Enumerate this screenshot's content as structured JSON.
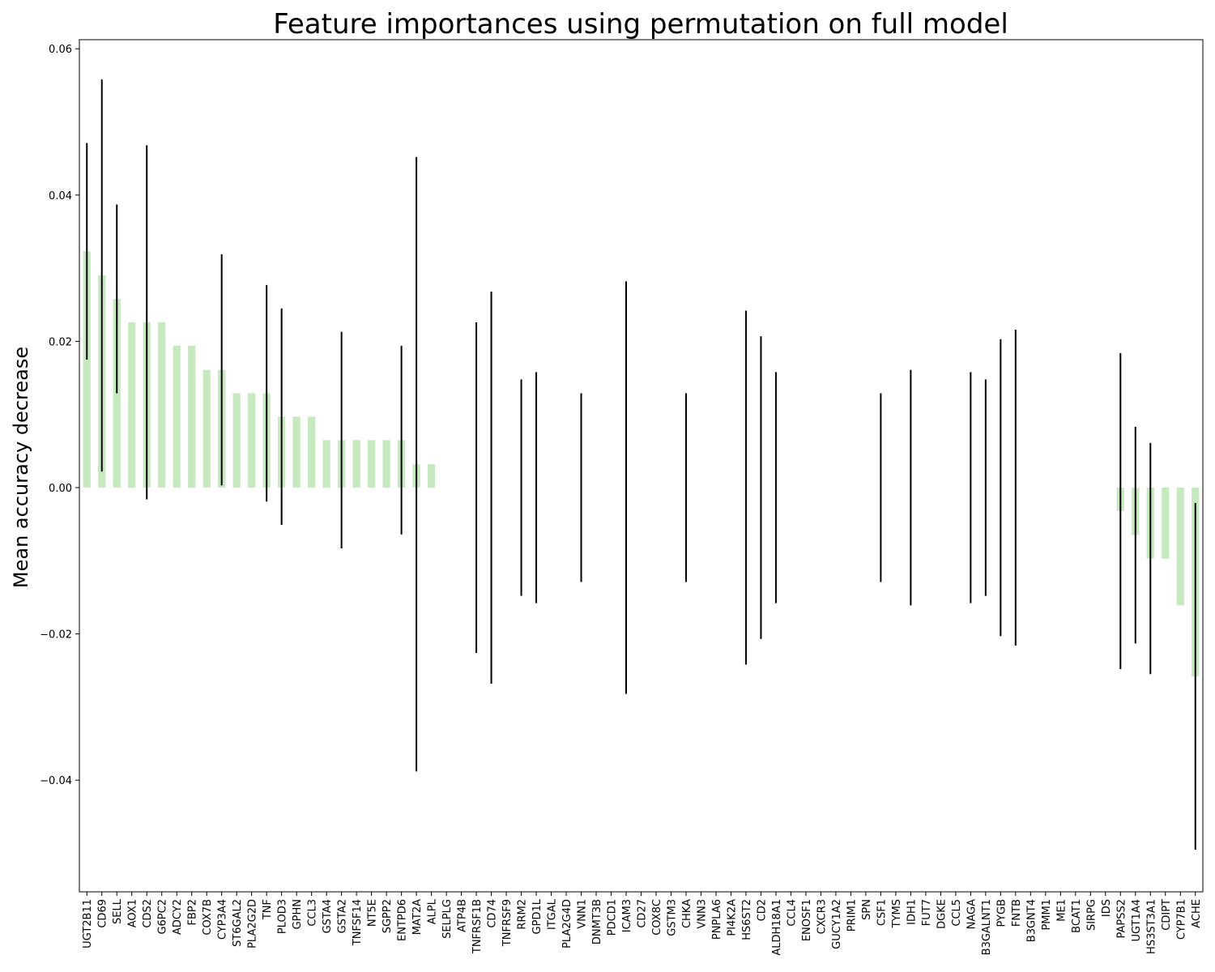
{
  "chart_data": {
    "type": "bar",
    "title": "Feature importances using permutation on full model",
    "xlabel": "",
    "ylabel": "Mean accuracy decrease",
    "ylim": [
      -0.055,
      0.061
    ],
    "yticks": [
      0.06,
      0.04,
      0.02,
      0.0,
      -0.02,
      -0.04
    ],
    "ytick_labels": [
      "0.06",
      "0.04",
      "0.02",
      "0.00",
      "−0.02",
      "−0.04"
    ],
    "grid": false,
    "bar_color": "#c7e9c0",
    "errorbar_color": "#000000",
    "categories": [
      "UGT2B11",
      "CD69",
      "SELL",
      "AOX1",
      "CDS2",
      "G6PC2",
      "ADCY2",
      "FBP2",
      "COX7B",
      "CYP3A4",
      "ST6GAL2",
      "PLA2G2D",
      "TNF",
      "PLOD3",
      "GPHN",
      "CCL3",
      "GSTA4",
      "GSTA2",
      "TNFSF14",
      "NT5E",
      "SGPP2",
      "ENTPD6",
      "MAT2A",
      "ALPL",
      "SELPLG",
      "ATP4B",
      "TNFRSF1B",
      "CD74",
      "TNFRSF9",
      "RRM2",
      "GPD1L",
      "ITGAL",
      "PLA2G4D",
      "VNN1",
      "DNMT3B",
      "PDCD1",
      "ICAM3",
      "CD27",
      "COX8C",
      "GSTM3",
      "CHKA",
      "VNN3",
      "PNPLA6",
      "PI4K2A",
      "HS6ST2",
      "CD2",
      "ALDH18A1",
      "CCL4",
      "ENOSF1",
      "CXCR3",
      "GUCY1A2",
      "PRIM1",
      "SPN",
      "CSF1",
      "TYMS",
      "IDH1",
      "FUT7",
      "DGKE",
      "CCL5",
      "NAGA",
      "B3GALNT1",
      "PYGB",
      "FNTB",
      "B3GNT4",
      "PMM1",
      "ME1",
      "BCAT1",
      "SIRPG",
      "IDS",
      "PAPSS2",
      "UGT1A4",
      "HS3ST3A1",
      "CDIPT",
      "CYP7B1",
      "ACHE"
    ],
    "values": [
      0.0323,
      0.029,
      0.0258,
      0.0226,
      0.0226,
      0.0226,
      0.0194,
      0.0194,
      0.0161,
      0.0161,
      0.0129,
      0.0129,
      0.0129,
      0.0097,
      0.0097,
      0.0097,
      0.0065,
      0.0065,
      0.0065,
      0.0065,
      0.0065,
      0.0065,
      0.0032,
      0.0032,
      0,
      0,
      0,
      0,
      0,
      0,
      0,
      0,
      0,
      0,
      0,
      0,
      0,
      0,
      0,
      0,
      0,
      0,
      0,
      0,
      0,
      0,
      0,
      0,
      0,
      0,
      0,
      0,
      0,
      0,
      0,
      0,
      0,
      0,
      0,
      0,
      0,
      0,
      0,
      0,
      0,
      0,
      0,
      0,
      0,
      -0.0032,
      -0.0065,
      -0.0097,
      -0.0097,
      -0.0161,
      -0.0258
    ],
    "errors": [
      0.0148,
      0.0268,
      0.0129,
      0,
      0.0242,
      0,
      0,
      0,
      0,
      0.0158,
      0,
      0,
      0.0148,
      0.0148,
      0,
      0,
      0,
      0.0148,
      0,
      0,
      0,
      0.0129,
      0.042,
      0,
      0,
      0,
      0.0226,
      0.0268,
      0,
      0.0148,
      0.0158,
      0,
      0,
      0.0129,
      0,
      0,
      0.0282,
      0,
      0,
      0,
      0.0129,
      0,
      0,
      0,
      0.0242,
      0.0207,
      0.0158,
      0,
      0,
      0,
      0,
      0,
      0,
      0.0129,
      0,
      0.0161,
      0,
      0,
      0,
      0.0158,
      0.0148,
      0.0203,
      0.0216,
      0,
      0,
      0,
      0,
      0,
      0,
      0.0216,
      0.0148,
      0.0158,
      0,
      0,
      0.0237
    ]
  }
}
